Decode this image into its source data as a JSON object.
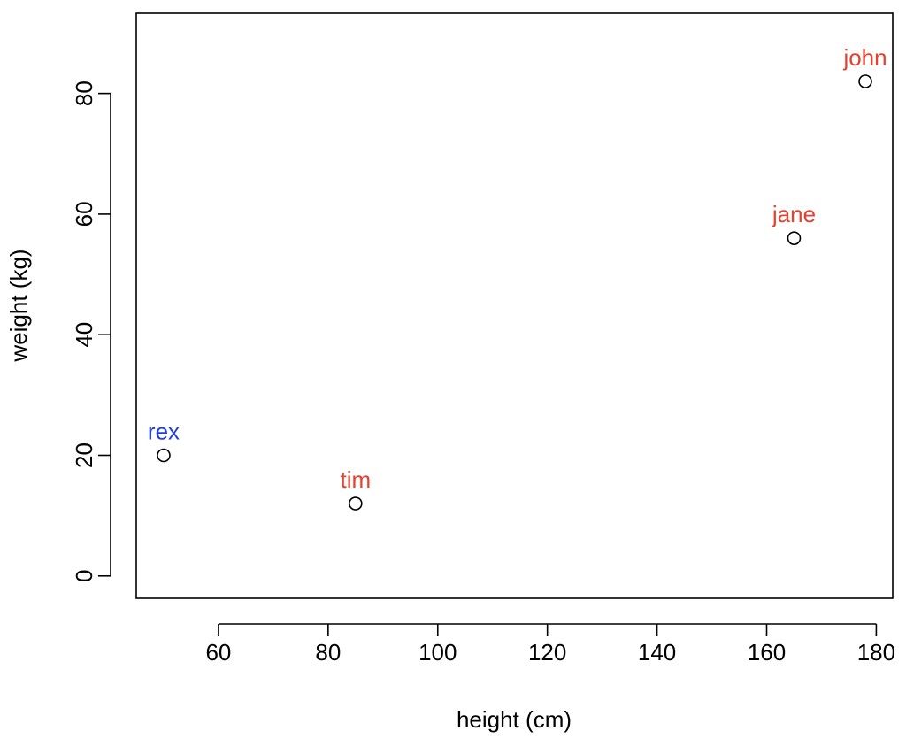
{
  "chart_data": {
    "type": "scatter",
    "xlabel": "height (cm)",
    "ylabel": "weight (kg)",
    "xlim": [
      45,
      183
    ],
    "ylim": [
      -3.7,
      93.3
    ],
    "xticks": [
      60,
      80,
      100,
      120,
      140,
      160,
      180
    ],
    "yticks": [
      0,
      20,
      40,
      60,
      80
    ],
    "grid": false,
    "points": [
      {
        "label": "john",
        "x": 178,
        "y": 82,
        "label_color": "#e8402e"
      },
      {
        "label": "jane",
        "x": 165,
        "y": 56,
        "label_color": "#e8402e"
      },
      {
        "label": "rex",
        "x": 50,
        "y": 20,
        "label_color": "#1f3fe0"
      },
      {
        "label": "tim",
        "x": 85,
        "y": 12,
        "label_color": "#e8402e"
      }
    ]
  }
}
